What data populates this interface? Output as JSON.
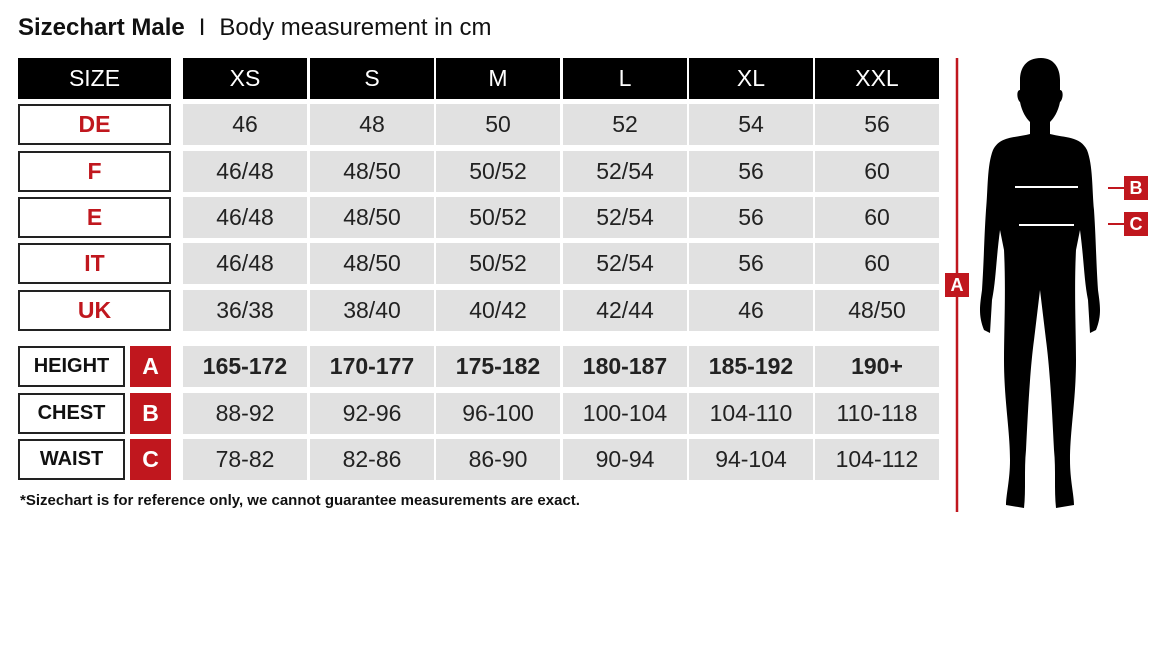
{
  "title": {
    "bold": "Sizechart Male",
    "separator": "I",
    "subtitle": "Body measurement in cm"
  },
  "header": {
    "label": "SIZE",
    "sizes": [
      "XS",
      "S",
      "M",
      "L",
      "XL",
      "XXL"
    ]
  },
  "size_rows": [
    {
      "label": "DE",
      "values": [
        "46",
        "48",
        "50",
        "52",
        "54",
        "56"
      ]
    },
    {
      "label": "F",
      "values": [
        "46/48",
        "48/50",
        "50/52",
        "52/54",
        "56",
        "60"
      ]
    },
    {
      "label": "E",
      "values": [
        "46/48",
        "48/50",
        "50/52",
        "52/54",
        "56",
        "60"
      ]
    },
    {
      "label": "IT",
      "values": [
        "46/48",
        "48/50",
        "50/52",
        "52/54",
        "56",
        "60"
      ]
    },
    {
      "label": "UK",
      "values": [
        "36/38",
        "38/40",
        "40/42",
        "42/44",
        "46",
        "48/50"
      ]
    }
  ],
  "measure_rows": [
    {
      "label": "HEIGHT",
      "key": "A",
      "values": [
        "165-172",
        "170-177",
        "175-182",
        "180-187",
        "185-192",
        "190+"
      ]
    },
    {
      "label": "CHEST",
      "key": "B",
      "values": [
        "88-92",
        "92-96",
        "96-100",
        "100-104",
        "104-110",
        "110-118"
      ]
    },
    {
      "label": "WAIST",
      "key": "C",
      "values": [
        "78-82",
        "82-86",
        "86-90",
        "90-94",
        "94-104",
        "104-112"
      ]
    }
  ],
  "footnote": "*Sizechart is for reference only, we cannot guarantee measurements are exact.",
  "figure": {
    "height_tag": "A",
    "chest_tag": "B",
    "waist_tag": "C"
  },
  "colors": {
    "accent": "#c0171e",
    "header": "#000000",
    "cell": "#e1e1e1"
  }
}
